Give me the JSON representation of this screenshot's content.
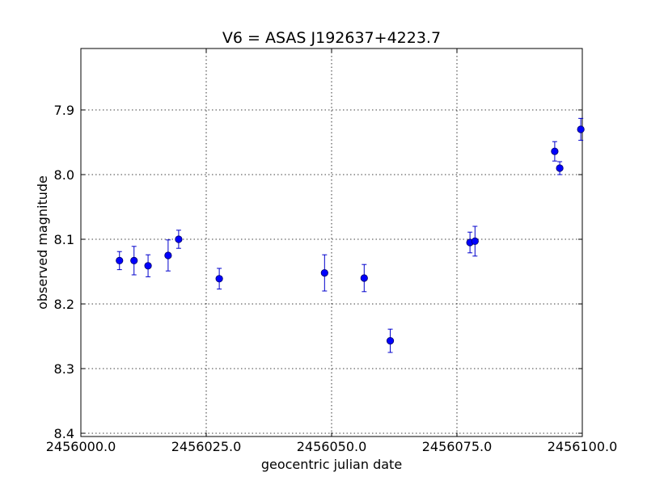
{
  "chart_data": {
    "type": "scatter",
    "title": "V6 = ASAS J192637+4223.7",
    "xlabel": "geocentric julian date",
    "ylabel": "observed magnitude",
    "xlim": [
      2456000.0,
      2456100.0
    ],
    "ylim": [
      7.805,
      8.405
    ],
    "y_inverted": true,
    "grid": true,
    "x_ticks": [
      2456000.0,
      2456025.0,
      2456050.0,
      2456075.0,
      2456100.0
    ],
    "x_tick_labels": [
      "2456000.0",
      "2456025.0",
      "2456050.0",
      "2456075.0",
      "2456100.0"
    ],
    "y_ticks": [
      7.9,
      8.0,
      8.1,
      8.2,
      8.3,
      8.4
    ],
    "y_tick_labels": [
      "7.9",
      "8.0",
      "8.1",
      "8.2",
      "8.3",
      "8.4"
    ],
    "colors": {
      "marker": "#0000ff",
      "errorbar": "#0000cc"
    },
    "points": [
      {
        "x": 2456007.7,
        "y": 8.133,
        "err": 0.014
      },
      {
        "x": 2456010.6,
        "y": 8.133,
        "err": 0.022
      },
      {
        "x": 2456013.4,
        "y": 8.141,
        "err": 0.017
      },
      {
        "x": 2456017.4,
        "y": 8.125,
        "err": 0.024
      },
      {
        "x": 2456019.5,
        "y": 8.1,
        "err": 0.014
      },
      {
        "x": 2456027.6,
        "y": 8.161,
        "err": 0.016
      },
      {
        "x": 2456048.6,
        "y": 8.152,
        "err": 0.028
      },
      {
        "x": 2456056.5,
        "y": 8.16,
        "err": 0.021
      },
      {
        "x": 2456061.7,
        "y": 8.257,
        "err": 0.018
      },
      {
        "x": 2456077.6,
        "y": 8.105,
        "err": 0.016
      },
      {
        "x": 2456078.6,
        "y": 8.103,
        "err": 0.023
      },
      {
        "x": 2456094.5,
        "y": 7.964,
        "err": 0.015
      },
      {
        "x": 2456095.5,
        "y": 7.99,
        "err": 0.01
      },
      {
        "x": 2456099.7,
        "y": 7.93,
        "err": 0.017
      }
    ]
  }
}
